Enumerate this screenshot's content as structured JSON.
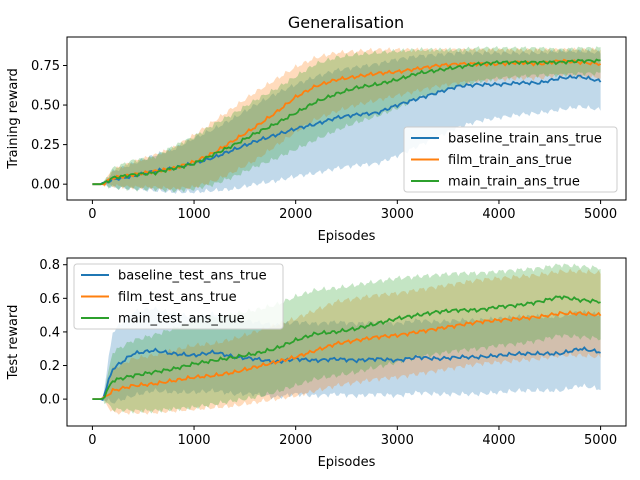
{
  "chart_data": [
    {
      "type": "line",
      "title": "Generalisation",
      "xlabel": "Episodes",
      "ylabel": "Training reward",
      "xlim": [
        -250,
        5250
      ],
      "ylim": [
        -0.1,
        0.93
      ],
      "xticks": [
        0,
        1000,
        2000,
        3000,
        4000,
        5000
      ],
      "yticks": [
        0.0,
        0.25,
        0.5,
        0.75
      ],
      "ytick_labels": [
        "0.00",
        "0.25",
        "0.50",
        "0.75"
      ],
      "legend_position": "lower-right",
      "x": [
        0,
        100,
        200,
        400,
        600,
        800,
        1000,
        1200,
        1400,
        1600,
        1800,
        2000,
        2200,
        2400,
        2600,
        2800,
        3000,
        3200,
        3400,
        3600,
        3800,
        4000,
        4200,
        4400,
        4600,
        4800,
        5000
      ],
      "series": [
        {
          "name": "baseline_train_ans_true",
          "color": "#1f77b4",
          "values": [
            0.0,
            0.0,
            0.03,
            0.05,
            0.08,
            0.1,
            0.13,
            0.17,
            0.22,
            0.27,
            0.31,
            0.35,
            0.38,
            0.42,
            0.44,
            0.45,
            0.5,
            0.54,
            0.58,
            0.62,
            0.63,
            0.63,
            0.64,
            0.64,
            0.67,
            0.68,
            0.65
          ],
          "lower": [
            0.0,
            0.0,
            -0.02,
            -0.03,
            -0.04,
            -0.05,
            -0.05,
            -0.04,
            -0.03,
            0.0,
            0.02,
            0.05,
            0.07,
            0.1,
            0.12,
            0.13,
            0.18,
            0.24,
            0.3,
            0.36,
            0.4,
            0.42,
            0.44,
            0.45,
            0.47,
            0.49,
            0.47
          ],
          "upper": [
            0.0,
            0.0,
            0.08,
            0.13,
            0.18,
            0.22,
            0.29,
            0.35,
            0.42,
            0.5,
            0.57,
            0.63,
            0.68,
            0.72,
            0.74,
            0.76,
            0.79,
            0.81,
            0.82,
            0.83,
            0.83,
            0.83,
            0.83,
            0.83,
            0.84,
            0.84,
            0.83
          ]
        },
        {
          "name": "film_train_ans_true",
          "color": "#ff7f0e",
          "values": [
            0.0,
            0.0,
            0.04,
            0.06,
            0.08,
            0.1,
            0.14,
            0.2,
            0.28,
            0.36,
            0.45,
            0.55,
            0.62,
            0.66,
            0.68,
            0.7,
            0.71,
            0.73,
            0.75,
            0.76,
            0.76,
            0.76,
            0.77,
            0.76,
            0.78,
            0.77,
            0.76
          ],
          "lower": [
            0.0,
            0.0,
            -0.01,
            -0.02,
            -0.02,
            -0.03,
            -0.02,
            0.02,
            0.08,
            0.15,
            0.24,
            0.33,
            0.41,
            0.46,
            0.5,
            0.53,
            0.56,
            0.59,
            0.62,
            0.64,
            0.65,
            0.66,
            0.67,
            0.67,
            0.69,
            0.68,
            0.67
          ],
          "upper": [
            0.0,
            0.0,
            0.09,
            0.14,
            0.18,
            0.23,
            0.31,
            0.4,
            0.49,
            0.58,
            0.66,
            0.74,
            0.8,
            0.83,
            0.84,
            0.85,
            0.85,
            0.85,
            0.85,
            0.85,
            0.85,
            0.85,
            0.85,
            0.85,
            0.85,
            0.85,
            0.85
          ]
        },
        {
          "name": "main_train_ans_true",
          "color": "#2ca02c",
          "values": [
            0.0,
            0.0,
            0.04,
            0.06,
            0.07,
            0.1,
            0.13,
            0.19,
            0.25,
            0.32,
            0.38,
            0.45,
            0.52,
            0.57,
            0.61,
            0.63,
            0.66,
            0.7,
            0.72,
            0.74,
            0.76,
            0.77,
            0.77,
            0.77,
            0.77,
            0.78,
            0.78
          ],
          "lower": [
            0.0,
            0.0,
            -0.02,
            -0.03,
            -0.03,
            -0.04,
            -0.03,
            0.0,
            0.05,
            0.11,
            0.16,
            0.22,
            0.28,
            0.34,
            0.39,
            0.43,
            0.48,
            0.54,
            0.58,
            0.62,
            0.65,
            0.67,
            0.68,
            0.69,
            0.69,
            0.7,
            0.7
          ],
          "upper": [
            0.0,
            0.0,
            0.1,
            0.15,
            0.17,
            0.24,
            0.3,
            0.38,
            0.45,
            0.53,
            0.6,
            0.68,
            0.76,
            0.8,
            0.82,
            0.83,
            0.84,
            0.85,
            0.85,
            0.85,
            0.86,
            0.86,
            0.86,
            0.86,
            0.85,
            0.86,
            0.86
          ]
        }
      ]
    },
    {
      "type": "line",
      "title": "",
      "xlabel": "Episodes",
      "ylabel": "Test reward",
      "xlim": [
        -250,
        5250
      ],
      "ylim": [
        -0.16,
        0.84
      ],
      "xticks": [
        0,
        1000,
        2000,
        3000,
        4000,
        5000
      ],
      "yticks": [
        0.0,
        0.2,
        0.4,
        0.6,
        0.8
      ],
      "ytick_labels": [
        "0.0",
        "0.2",
        "0.4",
        "0.6",
        "0.8"
      ],
      "legend_position": "upper-left",
      "x": [
        0,
        100,
        200,
        400,
        600,
        800,
        1000,
        1200,
        1400,
        1600,
        1800,
        2000,
        2200,
        2400,
        2600,
        2800,
        3000,
        3200,
        3400,
        3600,
        3800,
        4000,
        4200,
        4400,
        4600,
        4800,
        5000
      ],
      "series": [
        {
          "name": "baseline_test_ans_true",
          "color": "#1f77b4",
          "values": [
            0.0,
            0.0,
            0.18,
            0.27,
            0.29,
            0.27,
            0.26,
            0.28,
            0.25,
            0.24,
            0.22,
            0.24,
            0.23,
            0.24,
            0.23,
            0.24,
            0.23,
            0.25,
            0.24,
            0.25,
            0.25,
            0.26,
            0.27,
            0.27,
            0.27,
            0.3,
            0.28
          ],
          "lower": [
            0.0,
            0.0,
            -0.02,
            0.02,
            0.05,
            0.04,
            0.04,
            0.05,
            0.03,
            0.03,
            0.01,
            0.03,
            0.02,
            0.03,
            0.02,
            0.03,
            0.02,
            0.04,
            0.03,
            0.03,
            0.03,
            0.04,
            0.05,
            0.05,
            0.05,
            0.08,
            0.06
          ],
          "upper": [
            0.0,
            0.0,
            0.4,
            0.52,
            0.54,
            0.51,
            0.49,
            0.51,
            0.48,
            0.46,
            0.44,
            0.46,
            0.45,
            0.46,
            0.45,
            0.46,
            0.45,
            0.47,
            0.46,
            0.47,
            0.47,
            0.48,
            0.49,
            0.49,
            0.49,
            0.52,
            0.5
          ]
        },
        {
          "name": "film_test_ans_true",
          "color": "#ff7f0e",
          "values": [
            0.0,
            0.0,
            0.05,
            0.08,
            0.09,
            0.11,
            0.13,
            0.14,
            0.16,
            0.19,
            0.22,
            0.25,
            0.29,
            0.33,
            0.35,
            0.37,
            0.38,
            0.4,
            0.42,
            0.44,
            0.46,
            0.47,
            0.48,
            0.49,
            0.51,
            0.51,
            0.5
          ],
          "lower": [
            0.0,
            0.0,
            -0.08,
            -0.08,
            -0.08,
            -0.07,
            -0.06,
            -0.05,
            -0.04,
            -0.02,
            0.0,
            0.02,
            0.05,
            0.08,
            0.1,
            0.12,
            0.13,
            0.15,
            0.17,
            0.19,
            0.21,
            0.22,
            0.23,
            0.24,
            0.26,
            0.26,
            0.25
          ],
          "upper": [
            0.0,
            0.0,
            0.18,
            0.24,
            0.26,
            0.29,
            0.32,
            0.33,
            0.36,
            0.4,
            0.44,
            0.48,
            0.53,
            0.58,
            0.6,
            0.62,
            0.63,
            0.65,
            0.67,
            0.69,
            0.71,
            0.72,
            0.73,
            0.74,
            0.76,
            0.76,
            0.75
          ]
        },
        {
          "name": "main_test_ans_true",
          "color": "#2ca02c",
          "values": [
            0.0,
            0.0,
            0.11,
            0.14,
            0.16,
            0.18,
            0.21,
            0.23,
            0.25,
            0.27,
            0.3,
            0.35,
            0.39,
            0.4,
            0.42,
            0.45,
            0.48,
            0.5,
            0.52,
            0.53,
            0.53,
            0.55,
            0.56,
            0.58,
            0.61,
            0.59,
            0.58
          ],
          "lower": [
            0.0,
            0.0,
            -0.06,
            -0.07,
            -0.07,
            -0.06,
            -0.05,
            -0.03,
            -0.01,
            0.01,
            0.04,
            0.08,
            0.12,
            0.14,
            0.16,
            0.19,
            0.22,
            0.25,
            0.27,
            0.29,
            0.3,
            0.32,
            0.33,
            0.35,
            0.38,
            0.37,
            0.36
          ],
          "upper": [
            0.0,
            0.0,
            0.28,
            0.35,
            0.38,
            0.42,
            0.47,
            0.49,
            0.51,
            0.53,
            0.56,
            0.61,
            0.65,
            0.66,
            0.68,
            0.7,
            0.72,
            0.73,
            0.74,
            0.75,
            0.75,
            0.76,
            0.77,
            0.78,
            0.8,
            0.79,
            0.78
          ]
        }
      ]
    }
  ]
}
